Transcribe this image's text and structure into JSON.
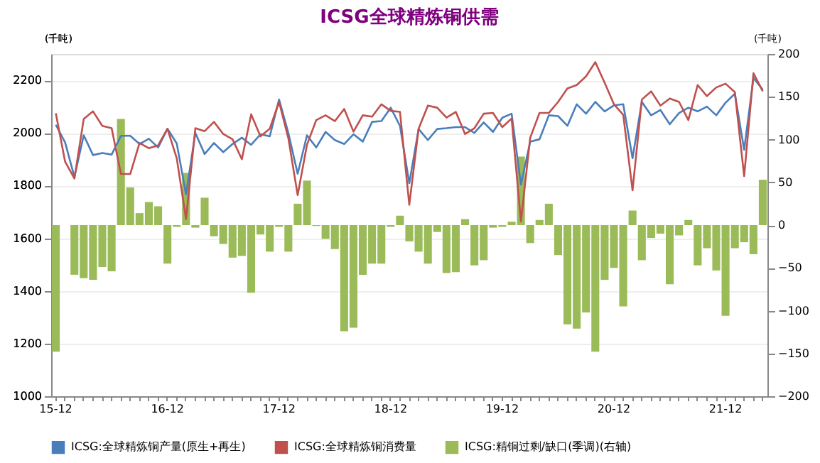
{
  "chart_data": {
    "type": "line",
    "title": "ICSG全球精炼铜供需",
    "ylabel": "(千吨)",
    "y2label": "(千吨)",
    "categories": [
      "15-12",
      null,
      null,
      null,
      null,
      null,
      null,
      null,
      null,
      null,
      null,
      null,
      "16-12",
      null,
      null,
      null,
      null,
      null,
      null,
      null,
      null,
      null,
      null,
      null,
      "17-12",
      null,
      null,
      null,
      null,
      null,
      null,
      null,
      null,
      null,
      null,
      null,
      "18-12",
      null,
      null,
      null,
      null,
      null,
      null,
      null,
      null,
      null,
      null,
      null,
      "19-12",
      null,
      null,
      null,
      null,
      null,
      null,
      null,
      null,
      null,
      null,
      null,
      "20-12",
      null,
      null,
      null,
      null,
      null,
      null,
      null,
      null,
      null,
      null,
      null,
      "21-12",
      null,
      null,
      null,
      null
    ],
    "series": [
      {
        "name": "ICSG:全球精炼铜产量(原生+再生)",
        "color": "#4a7ebb",
        "values": [
          2031,
          1964,
          1833,
          1991,
          1916,
          1924,
          1918,
          1989,
          1989,
          1958,
          1978,
          1945,
          2016,
          1960,
          1767,
          2000,
          1920,
          1962,
          1927,
          1958,
          1982,
          1955,
          1995,
          1987,
          2127,
          2000,
          1845,
          1991,
          1945,
          2004,
          1973,
          1958,
          1995,
          1967,
          2042,
          2045,
          2096,
          2027,
          1809,
          2015,
          1973,
          2015,
          2018,
          2022,
          2022,
          2000,
          2040,
          2004,
          2058,
          2073,
          1804,
          1967,
          1976,
          2067,
          2064,
          2027,
          2109,
          2073,
          2118,
          2082,
          2105,
          2109,
          1904,
          2118,
          2067,
          2087,
          2033,
          2076,
          2096,
          2082,
          2100,
          2067,
          2115,
          2149,
          1936,
          2209,
          2164
        ]
      },
      {
        "name": "ICSG:全球精炼铜消费量",
        "color": "#c0504d",
        "values": [
          2075,
          1891,
          1827,
          2053,
          2082,
          2027,
          2018,
          1844,
          1844,
          1962,
          1942,
          1953,
          2016,
          1904,
          1673,
          2018,
          2007,
          2042,
          1996,
          1976,
          1900,
          2071,
          1987,
          2016,
          2118,
          1980,
          1764,
          1955,
          2049,
          2067,
          2045,
          2091,
          2005,
          2067,
          2062,
          2109,
          2084,
          2080,
          1727,
          2016,
          2104,
          2096,
          2058,
          2080,
          1996,
          2018,
          2073,
          2076,
          2022,
          2055,
          1664,
          1982,
          2076,
          2076,
          2118,
          2169,
          2182,
          2215,
          2269,
          2191,
          2109,
          2069,
          1782,
          2127,
          2158,
          2104,
          2131,
          2118,
          2049,
          2182,
          2140,
          2173,
          2187,
          2155,
          1836,
          2227,
          2158
        ]
      },
      {
        "name": "ICSG:精铜过剩/缺口(季调)(右轴)",
        "type": "bar",
        "axis": "y2",
        "color": "#9bbb59",
        "values": [
          -148,
          0,
          -58,
          -62,
          -64,
          -49,
          -54,
          124,
          44,
          14,
          27,
          22,
          -45,
          -2,
          61,
          -3,
          32,
          -13,
          -22,
          -38,
          -36,
          -79,
          -11,
          -31,
          -2,
          -31,
          25,
          52,
          -1,
          -16,
          -28,
          -124,
          -120,
          -58,
          -45,
          -45,
          -2,
          11,
          -19,
          -31,
          -45,
          -8,
          -56,
          -55,
          7,
          -47,
          -41,
          -3,
          -2,
          4,
          80,
          -21,
          6,
          25,
          -35,
          -116,
          -121,
          -102,
          -148,
          -64,
          -50,
          -95,
          17,
          -41,
          -15,
          -10,
          -69,
          -12,
          6,
          -47,
          -27,
          -53,
          -106,
          -27,
          -20,
          -34,
          53
        ]
      }
    ],
    "ylim": [
      1000,
      2300
    ],
    "yticks": [
      1000,
      1200,
      1400,
      1600,
      1800,
      2000,
      2200
    ],
    "y2lim": [
      -200,
      200
    ],
    "y2ticks": [
      -200,
      -150,
      -100,
      -50,
      0,
      50,
      100,
      150,
      200
    ],
    "grid": "y",
    "legend": "bottom"
  }
}
